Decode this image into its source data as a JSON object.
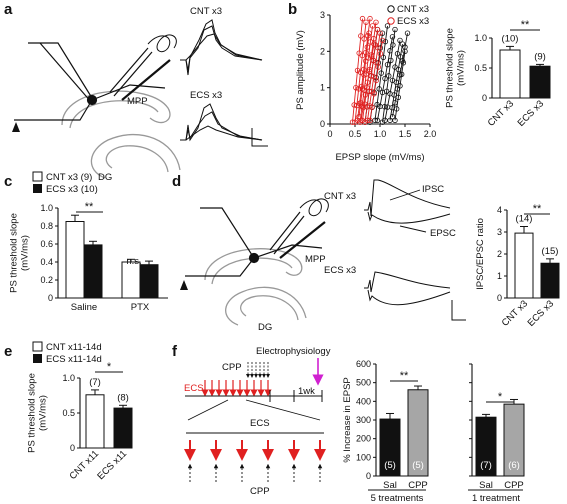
{
  "panels": {
    "a": {
      "label": "a",
      "mpp": "MPP",
      "dg": "DG",
      "trace_cnt": "CNT x3",
      "trace_ecs": "ECS x3"
    },
    "b": {
      "label": "b",
      "legend_cnt": "CNT x3",
      "legend_ecs": "ECS x3"
    },
    "c": {
      "label": "c",
      "legend_cnt": "CNT x3 (9)",
      "legend_ecs": "ECS x3 (10)",
      "sig_saline": "**",
      "sig_ptx": "n.s."
    },
    "d": {
      "label": "d",
      "mpp": "MPP",
      "dg": "DG",
      "trace_cnt": "CNT x3",
      "trace_ecs": "ECS x3",
      "ipsc": "IPSC",
      "epsc": "EPSC"
    },
    "e": {
      "label": "e",
      "legend_cnt": "CNT x11-14d",
      "legend_ecs": "ECS x11-14d"
    },
    "f": {
      "label": "f",
      "electrophysiology": "Electrophysiology",
      "cpp_top": "CPP",
      "ecs_left": "ECS",
      "one_week": "1wk",
      "ecs_zoom": "ECS",
      "cpp_bottom": "CPP",
      "group1": "5 treatments",
      "group2": "1 treatment"
    }
  },
  "chart_data": [
    {
      "id": "b-scatter",
      "type": "scatter",
      "xlabel": "EPSP slope (mV/ms)",
      "ylabel": "PS amplitude (mV)",
      "xlim": [
        0,
        2.0
      ],
      "ylim": [
        0,
        3
      ],
      "xticks": [
        "0",
        "0.5",
        "1.0",
        "1.5",
        "2.0"
      ],
      "yticks": [
        "0",
        "1",
        "2",
        "3"
      ],
      "legend_position": "top-right",
      "series": [
        {
          "name": "CNT x3",
          "color": "#111111",
          "marker": "open-circle",
          "lines": [
            [
              0.7,
              0.05,
              0.95,
              2.6
            ],
            [
              0.8,
              0.05,
              1.05,
              2.5
            ],
            [
              0.9,
              0.1,
              1.15,
              2.7
            ],
            [
              0.95,
              0.1,
              1.25,
              2.4
            ],
            [
              1.05,
              0.05,
              1.3,
              2.6
            ],
            [
              1.1,
              0.1,
              1.4,
              2.3
            ],
            [
              1.2,
              0.1,
              1.45,
              2.2
            ],
            [
              1.3,
              0.1,
              1.5,
              2.0
            ],
            [
              1.25,
              0.2,
              1.55,
              2.5
            ]
          ]
        },
        {
          "name": "ECS x3",
          "color": "#e02020",
          "marker": "open-circle",
          "lines": [
            [
              0.45,
              0.05,
              0.65,
              2.9
            ],
            [
              0.5,
              0.05,
              0.72,
              2.8
            ],
            [
              0.55,
              0.1,
              0.8,
              2.9
            ],
            [
              0.6,
              0.05,
              0.85,
              2.7
            ],
            [
              0.65,
              0.1,
              0.92,
              2.8
            ],
            [
              0.7,
              0.05,
              0.95,
              2.6
            ],
            [
              0.75,
              0.1,
              1.0,
              2.5
            ],
            [
              0.8,
              0.1,
              1.05,
              2.3
            ],
            [
              0.58,
              0.2,
              0.78,
              2.5
            ],
            [
              0.62,
              0.1,
              0.88,
              2.2
            ]
          ]
        }
      ]
    },
    {
      "id": "b-bar",
      "type": "bar",
      "ylabel": "PS threshold slope\n(mV/ms)",
      "ylim": [
        0,
        1.0
      ],
      "yticks": [
        "0",
        "0.5",
        "1.0"
      ],
      "categories": [
        "CNT x3",
        "ECS x3"
      ],
      "values": [
        0.8,
        0.53
      ],
      "errors": [
        0.06,
        0.03
      ],
      "n": [
        "(10)",
        "(9)"
      ],
      "colors": [
        "#ffffff",
        "#111111"
      ],
      "significance": "**"
    },
    {
      "id": "c-bar",
      "type": "bar",
      "ylabel": "PS threshold slope\n(mV/ms)",
      "ylim": [
        0,
        1.0
      ],
      "yticks": [
        "0",
        "0.2",
        "0.4",
        "0.6",
        "0.8",
        "1.0"
      ],
      "categories": [
        "Saline",
        "PTX"
      ],
      "series": [
        {
          "name": "CNT x3 (9)",
          "values": [
            0.85,
            0.4
          ],
          "errors": [
            0.07,
            0.03
          ],
          "color": "#ffffff"
        },
        {
          "name": "ECS x3 (10)",
          "values": [
            0.59,
            0.37
          ],
          "errors": [
            0.04,
            0.04
          ],
          "color": "#111111"
        }
      ]
    },
    {
      "id": "d-bar",
      "type": "bar",
      "ylabel": "IPSC/EPSC ratio",
      "ylim": [
        0,
        4
      ],
      "yticks": [
        "0",
        "1",
        "2",
        "3",
        "4"
      ],
      "categories": [
        "CNT x3",
        "ECS x3"
      ],
      "values": [
        2.95,
        1.58
      ],
      "errors": [
        0.3,
        0.2
      ],
      "n": [
        "(14)",
        "(15)"
      ],
      "colors": [
        "#ffffff",
        "#111111"
      ],
      "significance": "**"
    },
    {
      "id": "e-bar",
      "type": "bar",
      "ylabel": "PS threshold slope\n(mV/ms)",
      "ylim": [
        0,
        1.0
      ],
      "yticks": [
        "0",
        "0.5",
        "1.0"
      ],
      "categories": [
        "CNT x11",
        "ECS x11"
      ],
      "values": [
        0.76,
        0.57
      ],
      "errors": [
        0.07,
        0.04
      ],
      "n": [
        "(7)",
        "(8)"
      ],
      "colors": [
        "#ffffff",
        "#111111"
      ],
      "significance": "*"
    },
    {
      "id": "f-bar1",
      "type": "bar",
      "ylabel": "% Increase in EPSP",
      "ylim": [
        0,
        600
      ],
      "yticks": [
        "0",
        "100",
        "200",
        "300",
        "400",
        "500",
        "600"
      ],
      "categories": [
        "Sal",
        "CPP"
      ],
      "values": [
        305,
        462
      ],
      "errors": [
        30,
        20
      ],
      "n": [
        "(5)",
        "(5)"
      ],
      "colors": [
        "#111111",
        "#a6a6a6"
      ],
      "significance": "**"
    },
    {
      "id": "f-bar2",
      "type": "bar",
      "ylim": [
        0,
        600
      ],
      "categories": [
        "Sal",
        "CPP"
      ],
      "values": [
        315,
        385
      ],
      "errors": [
        15,
        25
      ],
      "n": [
        "(7)",
        "(6)"
      ],
      "colors": [
        "#111111",
        "#a6a6a6"
      ],
      "significance": "*"
    }
  ]
}
